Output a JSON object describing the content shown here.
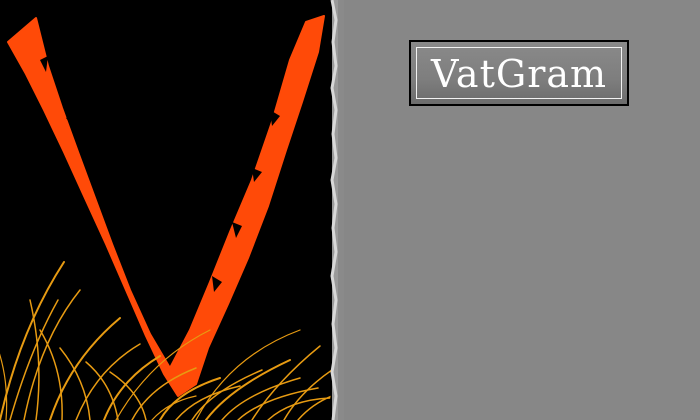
{
  "logo": {
    "title": "VatGram",
    "letter_color": "#ff4a08",
    "grass_color": "#e79b12",
    "left_background": "#000000",
    "right_background": "#878787"
  }
}
